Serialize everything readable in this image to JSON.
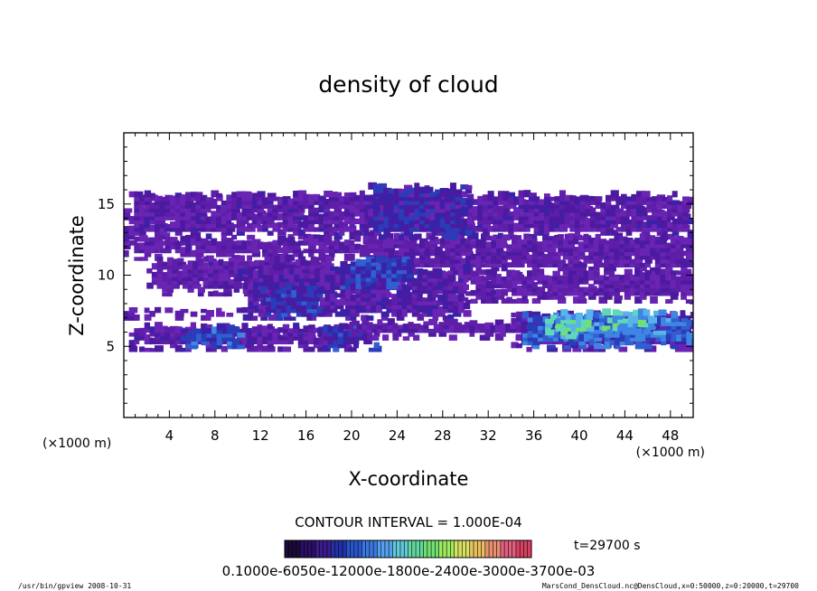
{
  "chart_data": {
    "type": "heatmap",
    "title": "density of cloud",
    "xlabel": "X-coordinate",
    "ylabel": "Z-coordinate",
    "x_unit_left": "(×1000 m)",
    "x_unit_right": "(×1000 m)",
    "xlim": [
      0,
      50
    ],
    "ylim": [
      0,
      20
    ],
    "x_ticks": [
      4,
      8,
      12,
      16,
      20,
      24,
      28,
      32,
      36,
      40,
      44,
      48
    ],
    "y_ticks": [
      5,
      10,
      15
    ],
    "contour_interval_text": "CONTOUR INTERVAL = 1.000E-04",
    "time_label": "t=29700 s",
    "colorbar_labels_text": "0.1000e-6050e-12000e-1800e-2400e-3000e-3700e-03",
    "colorbar": {
      "min": 0.0001,
      "max": 0.0037,
      "colors": [
        "#1a0a3a",
        "#2a0f66",
        "#3b1c8c",
        "#2233aa",
        "#2a55cc",
        "#3a78e0",
        "#55a0ee",
        "#60c8d8",
        "#60d8a0",
        "#70e070",
        "#a0e860",
        "#d8e060",
        "#e8c060",
        "#e89070",
        "#e06080",
        "#d84060"
      ]
    },
    "regions": [
      {
        "x0": 0,
        "x1": 50,
        "z0": 12.5,
        "z1": 15.5,
        "level": 0.15
      },
      {
        "x0": 0,
        "x1": 22,
        "z0": 11.0,
        "z1": 12.5,
        "level": 0.12
      },
      {
        "x0": 21,
        "x1": 50,
        "z0": 10.0,
        "z1": 12.5,
        "level": 0.13
      },
      {
        "x0": 21,
        "x1": 30,
        "z0": 12.5,
        "z1": 16.2,
        "level": 0.3
      },
      {
        "x0": 30,
        "x1": 50,
        "z0": 8.0,
        "z1": 10.0,
        "level": 0.12
      },
      {
        "x0": 2,
        "x1": 18,
        "z0": 8.5,
        "z1": 11.0,
        "level": 0.12
      },
      {
        "x0": 10,
        "x1": 30,
        "z0": 6.8,
        "z1": 10.5,
        "level": 0.2
      },
      {
        "x0": 12,
        "x1": 17,
        "z0": 6.8,
        "z1": 9.0,
        "level": 0.35
      },
      {
        "x0": 19,
        "x1": 25,
        "z0": 9.0,
        "z1": 11.0,
        "level": 0.38
      },
      {
        "x0": 0,
        "x1": 12,
        "z0": 6.8,
        "z1": 7.6,
        "level": 0.12
      },
      {
        "x0": 0,
        "x1": 20,
        "z0": 4.6,
        "z1": 6.4,
        "level": 0.15
      },
      {
        "x0": 5,
        "x1": 10,
        "z0": 4.8,
        "z1": 6.3,
        "level": 0.45
      },
      {
        "x0": 17,
        "x1": 22,
        "z0": 4.6,
        "z1": 6.0,
        "level": 0.35
      },
      {
        "x0": 20,
        "x1": 36,
        "z0": 5.4,
        "z1": 6.6,
        "level": 0.12
      },
      {
        "x0": 34,
        "x1": 50,
        "z0": 4.6,
        "z1": 7.2,
        "level": 0.2
      },
      {
        "x0": 35,
        "x1": 50,
        "z0": 4.8,
        "z1": 7.0,
        "level": 0.5
      },
      {
        "x0": 37,
        "x1": 41,
        "z0": 5.5,
        "z1": 7.2,
        "level": 0.75
      },
      {
        "x0": 42,
        "x1": 47,
        "z0": 5.8,
        "z1": 7.2,
        "level": 0.7
      }
    ],
    "grid": false
  },
  "footer": {
    "left": "/usr/bin/gpview   2008-10-31",
    "right": "MarsCond_DensCloud.nc@DensCloud,x=0:50000,z=0:20000,t=29700"
  }
}
